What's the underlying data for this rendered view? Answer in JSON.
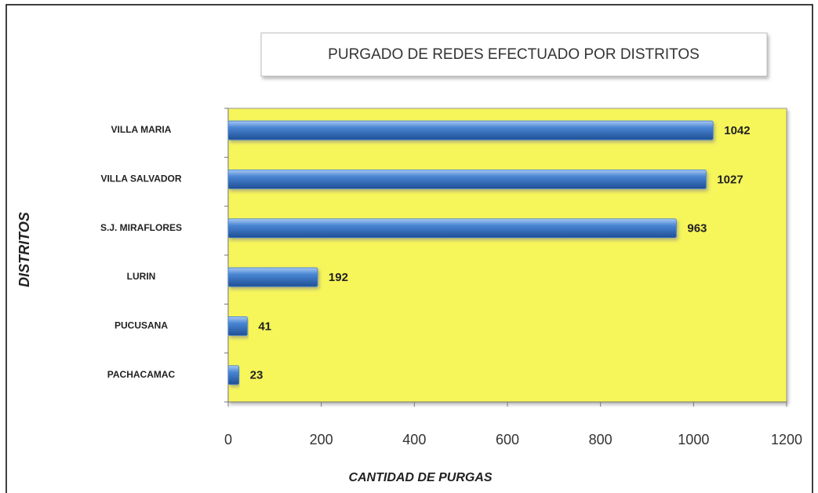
{
  "chart_data": {
    "type": "bar",
    "orientation": "horizontal",
    "title": "PURGADO DE REDES EFECTUADO POR DISTRITOS",
    "x_label": "CANTIDAD DE PURGAS",
    "y_label": "DISTRITOS",
    "categories": [
      "VILLA MARIA",
      "VILLA SALVADOR",
      "S.J. MIRAFLORES",
      "LURIN",
      "PUCUSANA",
      "PACHACAMAC"
    ],
    "values": [
      1042,
      1027,
      963,
      192,
      41,
      23
    ],
    "color": "#3f7fd0",
    "plot_background": "#f6f55a",
    "xlim": [
      0,
      1200
    ],
    "xticks": [
      0,
      200,
      400,
      600,
      800,
      1000,
      1200
    ],
    "grid": false
  }
}
